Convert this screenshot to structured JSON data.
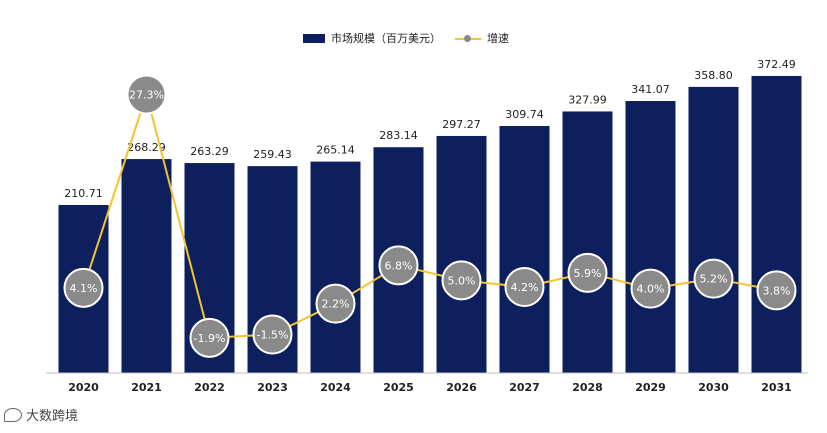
{
  "chart_data": {
    "type": "bar",
    "categories": [
      "2020",
      "2021",
      "2022",
      "2023",
      "2024",
      "2025",
      "2026",
      "2027",
      "2028",
      "2029",
      "2030",
      "2031"
    ],
    "series": [
      {
        "name": "市场规模（百万美元）",
        "type": "bar",
        "values": [
          210.71,
          268.29,
          263.29,
          259.43,
          265.14,
          283.14,
          297.27,
          309.74,
          327.99,
          341.07,
          358.8,
          372.49
        ],
        "labels": [
          "210.71",
          "268.29",
          "263.29",
          "259.43",
          "265.14",
          "283.14",
          "297.27",
          "309.74",
          "327.99",
          "341.07",
          "358.80",
          "372.49"
        ]
      },
      {
        "name": "增速",
        "type": "line",
        "values": [
          4.1,
          27.3,
          -1.9,
          -1.5,
          2.2,
          6.8,
          5.0,
          4.2,
          5.9,
          4.0,
          5.2,
          3.8
        ],
        "labels": [
          "4.1%",
          "27.3%",
          "-1.9%",
          "-1.5%",
          "2.2%",
          "6.8%",
          "5.0%",
          "4.2%",
          "5.9%",
          "4.0%",
          "5.2%",
          "3.8%"
        ]
      }
    ],
    "ylim_bar": [
      0,
      385
    ],
    "ylim_line": [
      -6,
      30
    ],
    "legend": "top-center",
    "grid": false,
    "colors": {
      "bar": "#0d1f5c",
      "line": "#f5c232",
      "marker": "#8a8a8a",
      "marker_border": "#ffffff"
    }
  },
  "legend": {
    "bar_label": "市场规模（百万美元）",
    "line_label": "增速"
  },
  "footer": {
    "brand": "大数跨境"
  }
}
